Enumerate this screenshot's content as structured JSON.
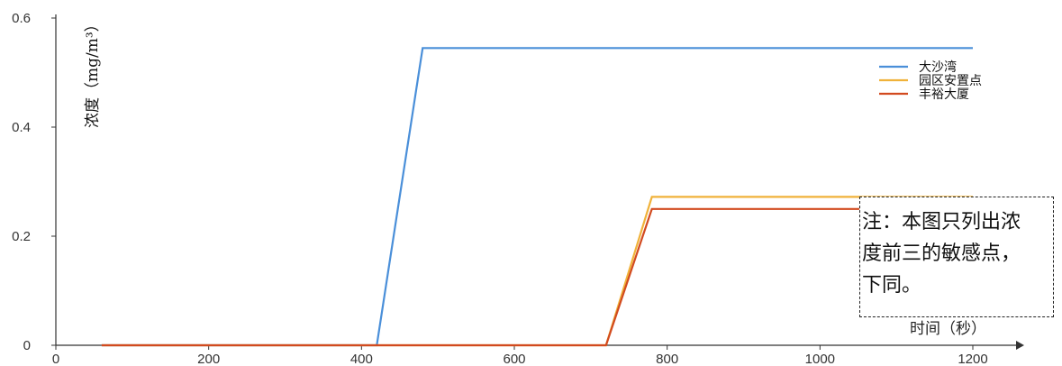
{
  "chart_data": {
    "type": "line",
    "title": "",
    "xlabel": "时间（秒）",
    "ylabel": "浓度（mg/m³）",
    "xlim": [
      0,
      1200
    ],
    "ylim": [
      0,
      0.6
    ],
    "x_ticks": [
      0,
      200,
      400,
      600,
      800,
      1000,
      1200
    ],
    "y_ticks": [
      0,
      0.2,
      0.4,
      0.6
    ],
    "y_tick_labels": [
      "0",
      "0.2",
      "0.4",
      "0.6"
    ],
    "grid": false,
    "legend_position": "top-right",
    "series": [
      {
        "name": "大沙湾",
        "color": "#4a8fd9",
        "x": [
          60,
          420,
          480,
          1200
        ],
        "y": [
          0,
          0,
          0.545,
          0.545
        ]
      },
      {
        "name": "园区安置点",
        "color": "#f0b23a",
        "x": [
          60,
          720,
          780,
          1200
        ],
        "y": [
          0,
          0,
          0.272,
          0.272
        ]
      },
      {
        "name": "丰裕大厦",
        "color": "#d24a1f",
        "x": [
          60,
          720,
          780,
          1200
        ],
        "y": [
          0,
          0,
          0.25,
          0.25
        ]
      }
    ]
  },
  "note": {
    "lines": [
      "注：本图只列出浓",
      "度前三的敏感点，",
      "下同。"
    ]
  }
}
